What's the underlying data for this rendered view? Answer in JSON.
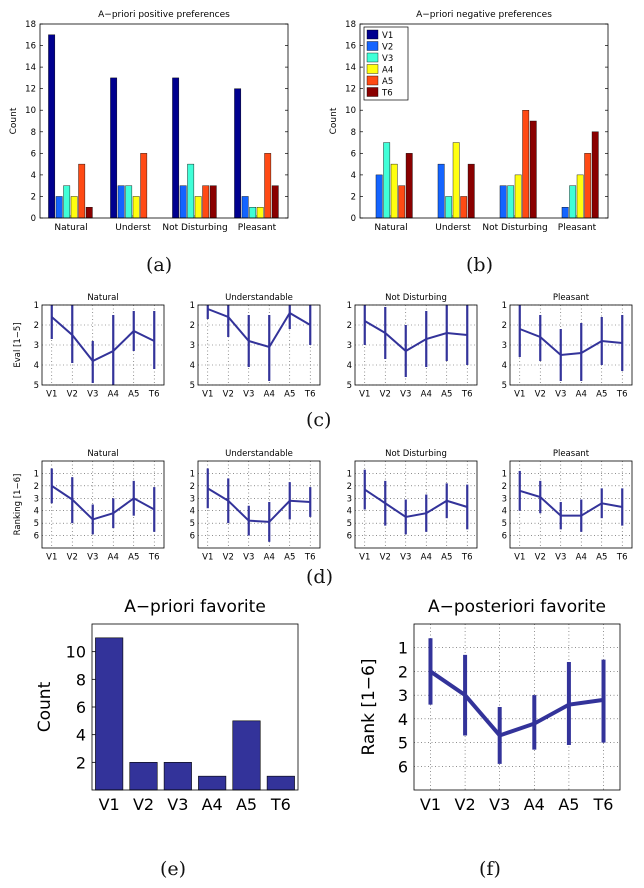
{
  "captions": [
    "(a)",
    "(b)",
    "(c)",
    "(d)",
    "(e)",
    "(f)"
  ],
  "chart_data": [
    {
      "id": "a",
      "type": "bar",
      "title": "A−priori positive preferences",
      "ylabel": "Count",
      "categories": [
        "Natural",
        "Underst",
        "Not Disturbing",
        "Pleasant"
      ],
      "ylim": [
        0,
        18
      ],
      "yticks": [
        0,
        2,
        4,
        6,
        8,
        10,
        12,
        14,
        16,
        18
      ],
      "series": [
        {
          "name": "V1",
          "color": "#00008f",
          "values": [
            17,
            13,
            13,
            12
          ]
        },
        {
          "name": "V2",
          "color": "#1464ff",
          "values": [
            2,
            3,
            3,
            2
          ]
        },
        {
          "name": "V3",
          "color": "#40ffd8",
          "values": [
            3,
            3,
            5,
            1
          ]
        },
        {
          "name": "A4",
          "color": "#ffff10",
          "values": [
            2,
            2,
            2,
            1
          ]
        },
        {
          "name": "A5",
          "color": "#ff4a14",
          "values": [
            5,
            6,
            3,
            6
          ]
        },
        {
          "name": "T6",
          "color": "#8a0000",
          "values": [
            1,
            0,
            3,
            3
          ]
        }
      ],
      "legend": "none",
      "grid": false
    },
    {
      "id": "b",
      "type": "bar",
      "title": "A−priori negative preferences",
      "ylabel": "Count",
      "categories": [
        "Natural",
        "Underst",
        "Not Disturbing",
        "Pleasant"
      ],
      "ylim": [
        0,
        18
      ],
      "yticks": [
        0,
        2,
        4,
        6,
        8,
        10,
        12,
        14,
        16,
        18
      ],
      "series": [
        {
          "name": "V1",
          "color": "#00008f",
          "values": [
            0,
            0,
            0,
            0
          ]
        },
        {
          "name": "V2",
          "color": "#1464ff",
          "values": [
            4,
            5,
            3,
            1
          ]
        },
        {
          "name": "V3",
          "color": "#40ffd8",
          "values": [
            7,
            2,
            3,
            3
          ]
        },
        {
          "name": "A4",
          "color": "#ffff10",
          "values": [
            5,
            7,
            4,
            4
          ]
        },
        {
          "name": "A5",
          "color": "#ff4a14",
          "values": [
            3,
            2,
            10,
            6
          ]
        },
        {
          "name": "T6",
          "color": "#8a0000",
          "values": [
            6,
            5,
            9,
            8
          ]
        }
      ],
      "legend": "top-left",
      "grid": false
    },
    {
      "id": "c",
      "type": "line",
      "ylabel": "Eval [1−5]",
      "categories": [
        "V1",
        "V2",
        "V3",
        "A4",
        "A5",
        "T6"
      ],
      "ylim": [
        1,
        5
      ],
      "yaxis_reversed": true,
      "yticks": [
        1,
        2,
        3,
        4,
        5
      ],
      "grid": true,
      "panels": [
        {
          "title": "Natural",
          "mean": [
            1.6,
            2.5,
            3.8,
            3.3,
            2.3,
            2.8
          ],
          "low": [
            0.5,
            1.0,
            2.8,
            1.5,
            1.3,
            1.3
          ],
          "high": [
            2.7,
            3.9,
            4.9,
            5.0,
            3.3,
            4.2
          ]
        },
        {
          "title": "Understandable",
          "mean": [
            1.2,
            1.6,
            2.8,
            3.1,
            1.4,
            2.0
          ],
          "low": [
            0.7,
            0.6,
            1.5,
            1.5,
            0.6,
            1.0
          ],
          "high": [
            1.7,
            2.6,
            4.1,
            4.8,
            2.2,
            3.0
          ]
        },
        {
          "title": "Not Disturbing",
          "mean": [
            1.8,
            2.4,
            3.3,
            2.7,
            2.4,
            2.5
          ],
          "low": [
            0.6,
            1.1,
            2.0,
            1.3,
            1.0,
            1.0
          ],
          "high": [
            3.0,
            3.7,
            4.6,
            4.1,
            3.8,
            4.0
          ]
        },
        {
          "title": "Pleasant",
          "mean": [
            2.2,
            2.6,
            3.5,
            3.4,
            2.8,
            2.9
          ],
          "low": [
            0.8,
            1.5,
            2.2,
            1.9,
            1.6,
            1.5
          ],
          "high": [
            3.6,
            3.8,
            4.8,
            4.8,
            4.0,
            4.3
          ]
        }
      ]
    },
    {
      "id": "d",
      "type": "line",
      "ylabel": "Ranking [1−6]",
      "categories": [
        "V1",
        "V2",
        "V3",
        "A4",
        "A5",
        "T6"
      ],
      "ylim": [
        0,
        7
      ],
      "yaxis_reversed": true,
      "yticks": [
        1,
        2,
        3,
        4,
        5,
        6
      ],
      "grid": true,
      "panels": [
        {
          "title": "Natural",
          "mean": [
            2.0,
            3.1,
            4.7,
            4.2,
            3.0,
            3.9
          ],
          "low": [
            0.6,
            1.3,
            3.5,
            3.0,
            1.6,
            2.1
          ],
          "high": [
            3.4,
            5.0,
            5.9,
            5.4,
            4.4,
            5.7
          ]
        },
        {
          "title": "Understandable",
          "mean": [
            2.2,
            3.2,
            4.8,
            4.9,
            3.2,
            3.3
          ],
          "low": [
            0.6,
            1.4,
            3.6,
            3.3,
            1.7,
            2.1
          ],
          "high": [
            3.8,
            5.0,
            6.0,
            6.5,
            4.7,
            4.5
          ]
        },
        {
          "title": "Not Disturbing",
          "mean": [
            2.3,
            3.4,
            4.5,
            4.2,
            3.2,
            3.7
          ],
          "low": [
            0.7,
            1.6,
            3.1,
            2.7,
            1.8,
            1.9
          ],
          "high": [
            3.9,
            5.2,
            5.9,
            5.7,
            4.6,
            5.5
          ]
        },
        {
          "title": "Pleasant",
          "mean": [
            2.4,
            2.9,
            4.4,
            4.4,
            3.4,
            3.7
          ],
          "low": [
            0.8,
            1.6,
            3.3,
            3.1,
            2.2,
            2.2
          ],
          "high": [
            4.0,
            4.2,
            5.5,
            5.7,
            4.6,
            5.2
          ]
        }
      ]
    },
    {
      "id": "e",
      "type": "bar",
      "title": "A−priori favorite",
      "ylabel": "Count",
      "categories": [
        "V1",
        "V2",
        "V3",
        "A4",
        "A5",
        "T6"
      ],
      "values": [
        11,
        2,
        2,
        1,
        5,
        1
      ],
      "color": "#33339a",
      "ylim": [
        0,
        12
      ],
      "yticks": [
        2,
        4,
        6,
        8,
        10
      ],
      "grid": false
    },
    {
      "id": "f",
      "type": "line",
      "title": "A−posteriori favorite",
      "ylabel": "Rank [1−6]",
      "categories": [
        "V1",
        "V2",
        "V3",
        "A4",
        "A5",
        "T6"
      ],
      "mean": [
        2.0,
        3.0,
        4.7,
        4.2,
        3.4,
        3.2
      ],
      "low": [
        0.6,
        1.3,
        3.5,
        3.0,
        1.6,
        1.5
      ],
      "high": [
        3.4,
        4.7,
        5.9,
        5.3,
        5.1,
        5.0
      ],
      "ylim": [
        0,
        7
      ],
      "yaxis_reversed": true,
      "yticks": [
        1,
        2,
        3,
        4,
        5,
        6
      ],
      "color": "#33339a",
      "grid": true
    }
  ]
}
